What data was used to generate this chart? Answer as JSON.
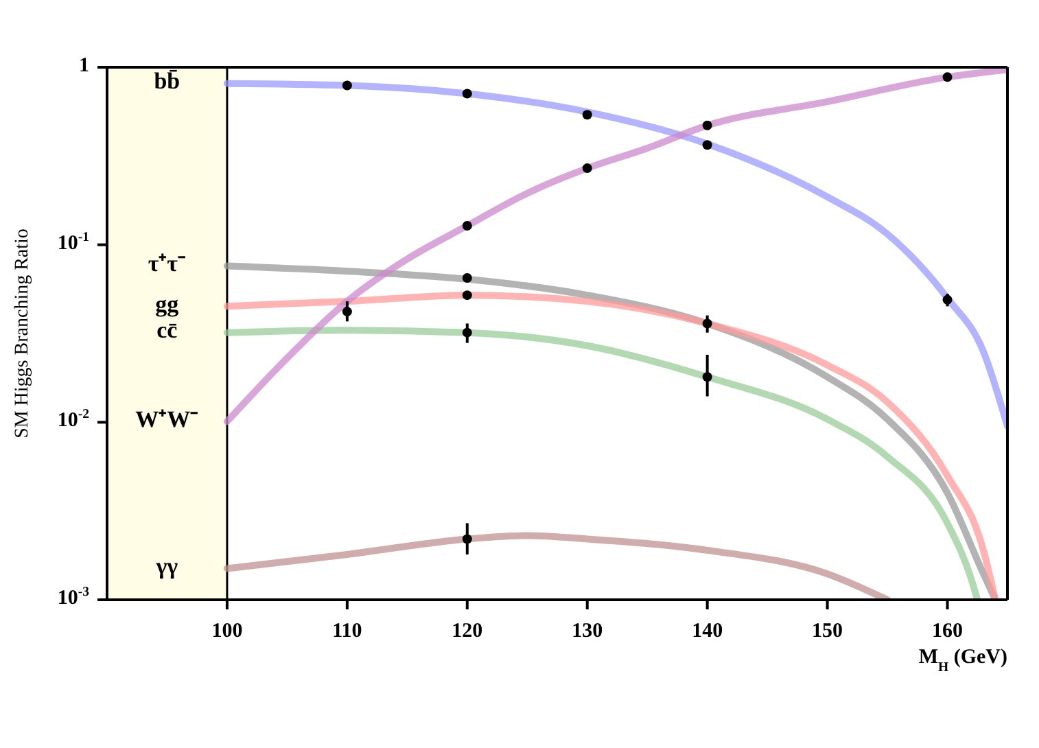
{
  "chart_data": {
    "type": "line",
    "xlabel": "M$_{H}$ (GeV)",
    "ylabel": "SM Higgs Branching Ratio",
    "log": "y",
    "xlim": [
      90,
      165
    ],
    "xticks": [
      100,
      110,
      120,
      130,
      140,
      150,
      160
    ],
    "ylim": [
      0.001,
      1
    ],
    "yticks": [
      {
        "value": 1,
        "label": "1"
      },
      {
        "value": 0.1,
        "label": "10$^{-1}$"
      },
      {
        "value": 0.01,
        "label": "10$^{-2}$"
      },
      {
        "value": 0.001,
        "label": "10$^{-3}$"
      }
    ],
    "marker": "none",
    "line_style": "solid",
    "bands": [
      {
        "axis": "x",
        "from": 90,
        "to": 100,
        "color": "#fffde6"
      }
    ],
    "series": [
      {
        "name": "bb̄",
        "color": "#9999ff",
        "x": [
          100,
          110,
          120,
          130,
          140,
          150,
          155,
          160,
          163,
          165
        ],
        "values": [
          0.81,
          0.79,
          0.71,
          0.56,
          0.37,
          0.186,
          0.115,
          0.05,
          0.025,
          0.0095
        ]
      },
      {
        "name": "τ⁺τ⁻",
        "color": "#999999",
        "x": [
          100,
          110,
          120,
          130,
          140,
          150,
          155,
          160,
          163,
          164
        ],
        "values": [
          0.076,
          0.071,
          0.064,
          0.052,
          0.036,
          0.018,
          0.0104,
          0.004,
          0.0014,
          0.001
        ]
      },
      {
        "name": "gg",
        "color": "#ff9999",
        "x": [
          100,
          110,
          120,
          130,
          140,
          150,
          155,
          160,
          163,
          164
        ],
        "values": [
          0.045,
          0.048,
          0.052,
          0.048,
          0.036,
          0.021,
          0.013,
          0.005,
          0.0019,
          0.001
        ]
      },
      {
        "name": "cc̄",
        "color": "#99cc99",
        "x": [
          100,
          110,
          120,
          130,
          140,
          150,
          155,
          160,
          162,
          162.5
        ],
        "values": [
          0.032,
          0.033,
          0.032,
          0.027,
          0.018,
          0.0104,
          0.0064,
          0.0027,
          0.0013,
          0.001
        ]
      },
      {
        "name": "W⁺W⁻",
        "color": "#cc88cc",
        "x": [
          100,
          105,
          110,
          115,
          120,
          125,
          130,
          135,
          140,
          150,
          160,
          165
        ],
        "values": [
          0.0101,
          0.023,
          0.048,
          0.083,
          0.128,
          0.195,
          0.27,
          0.35,
          0.47,
          0.64,
          0.88,
          0.97
        ]
      },
      {
        "name": "γγ",
        "color": "#c09090",
        "x": [
          100,
          110,
          120,
          125,
          130,
          140,
          150,
          155
        ],
        "values": [
          0.0015,
          0.0018,
          0.0022,
          0.0023,
          0.0022,
          0.0019,
          0.0014,
          0.001
        ]
      },
      {
        "type": "scatter",
        "color": "#000000",
        "marker": "circle",
        "x": [
          110,
          120,
          130,
          140,
          160,
          110,
          120,
          130,
          140,
          160,
          120,
          120,
          120,
          140,
          140,
          120
        ],
        "values": [
          0.79,
          0.71,
          0.54,
          0.365,
          0.049,
          0.042,
          0.128,
          0.27,
          0.47,
          0.88,
          0.065,
          0.052,
          0.032,
          0.036,
          0.018,
          0.0022
        ],
        "errors": [
          null,
          null,
          null,
          null,
          0.004,
          [
            0.037,
            0.048
          ],
          null,
          null,
          null,
          null,
          null,
          null,
          0.004,
          0.004,
          [
            0.014,
            0.024
          ],
          [
            0.0018,
            0.0027
          ]
        ]
      }
    ]
  }
}
